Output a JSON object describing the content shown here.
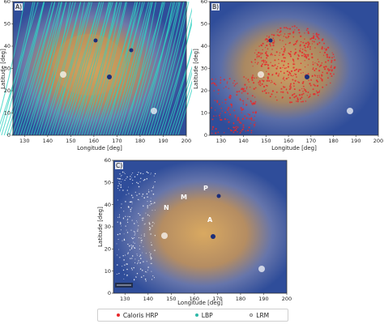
{
  "panels": [
    {
      "tag": "A)",
      "xlabel": "Longitude [deg]",
      "ylabel": "Latitude [deg]",
      "xticks": [
        "130",
        "140",
        "150",
        "160",
        "170",
        "180",
        "190",
        "200"
      ],
      "yticks": [
        "0",
        "10",
        "20",
        "30",
        "40",
        "50",
        "60"
      ],
      "overlay": "LBP"
    },
    {
      "tag": "B)",
      "xlabel": "Longitude [deg]",
      "ylabel": "Latitude [deg]",
      "xticks": [
        "130",
        "140",
        "150",
        "160",
        "170",
        "180",
        "190",
        "200"
      ],
      "yticks": [
        "0",
        "10",
        "20",
        "30",
        "40",
        "50",
        "60"
      ],
      "overlay": "Caloris HRP"
    },
    {
      "tag": "C)",
      "xlabel": "Longitude [deg]",
      "ylabel": "Latitude [deg]",
      "xticks": [
        "130",
        "140",
        "150",
        "160",
        "170",
        "180",
        "190",
        "200"
      ],
      "yticks": [
        "0",
        "10",
        "20",
        "30",
        "40",
        "50",
        "60"
      ],
      "overlay": "LRM",
      "features": [
        "P",
        "M",
        "N",
        "A"
      ]
    }
  ],
  "legend": {
    "items": [
      {
        "label": "Caloris HRP",
        "color": "#e8272a"
      },
      {
        "label": "LBP",
        "color": "#2fb8a8"
      },
      {
        "label": "LRM",
        "color": "#888888"
      }
    ]
  },
  "colors": {
    "basin_core": "#c89a55",
    "surroundings": "#3d5fa8",
    "hrp": "#e8272a",
    "lbp": "#2fd2c2",
    "lrm": "#ffffff"
  }
}
